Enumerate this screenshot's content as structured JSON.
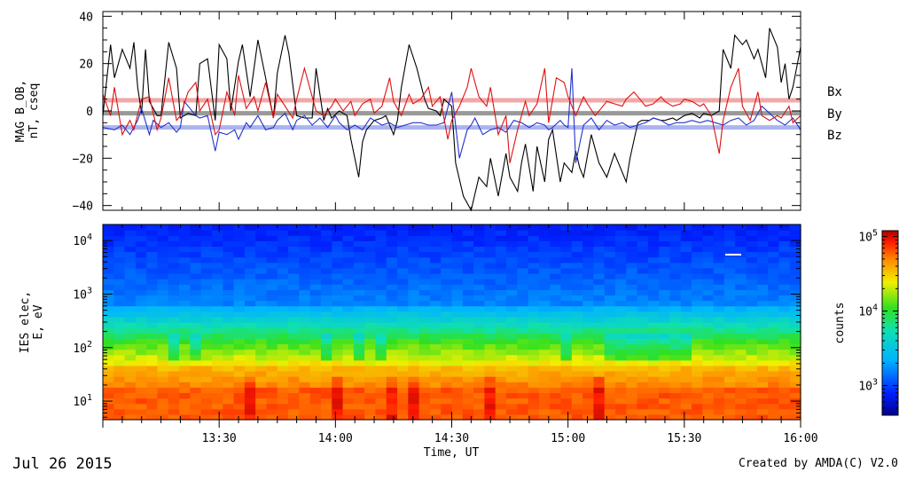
{
  "date_label": "Jul 26 2015",
  "credit": "Created by AMDA(C) V2.0",
  "chart_data": [
    {
      "type": "line",
      "title": "",
      "ylabel_lines": [
        "MAG B_OB,",
        "nT, cseq"
      ],
      "ylim": [
        -42,
        42
      ],
      "yticks": [
        -40,
        -20,
        0,
        20,
        40
      ],
      "ytick_labels": [
        "−40",
        "−20",
        "0",
        "20",
        "40"
      ],
      "xlim_minutes": [
        0,
        180
      ],
      "reference_lines": [
        {
          "series": "Bx",
          "value": -1,
          "color": "#999999"
        },
        {
          "series": "By",
          "value": -7,
          "color": "#aab4ee"
        },
        {
          "series": "Bz",
          "value": 4.5,
          "color": "#f0a8a8"
        }
      ],
      "series": [
        {
          "name": "Bx",
          "color": "#000000",
          "x": [
            0,
            2,
            3,
            5,
            7,
            8,
            9,
            10,
            11,
            12,
            14,
            15,
            17,
            19,
            20,
            22,
            24,
            25,
            27,
            29,
            30,
            32,
            33,
            35,
            36,
            38,
            40,
            42,
            44,
            45,
            47,
            48,
            50,
            52,
            54,
            55,
            57,
            58,
            59,
            61,
            62,
            63,
            64,
            66,
            67,
            68,
            70,
            72,
            73,
            75,
            76,
            77,
            79,
            81,
            83,
            84,
            86,
            87,
            88,
            90,
            91,
            93,
            95,
            97,
            99,
            100,
            102,
            104,
            105,
            107,
            108,
            109,
            111,
            112,
            114,
            115,
            116,
            118,
            119,
            121,
            122,
            123,
            124,
            126,
            128,
            130,
            132,
            133,
            135,
            136,
            138,
            139,
            141,
            142,
            144,
            145,
            147,
            148,
            149,
            150,
            152,
            154,
            155,
            157,
            159,
            160,
            162,
            163,
            165,
            166,
            168,
            169,
            171,
            172,
            174,
            175,
            176,
            177,
            178,
            180
          ],
          "values": [
            -2,
            28,
            14,
            26,
            18,
            29,
            10,
            -1,
            26,
            4,
            -2,
            -2,
            29,
            18,
            -3,
            -1,
            -2,
            20,
            22,
            -4,
            28,
            22,
            0,
            21,
            28,
            6,
            30,
            14,
            -3,
            16,
            32,
            24,
            -2,
            -3,
            -3,
            18,
            -4,
            1,
            -3,
            0,
            -1,
            -2,
            -12,
            -28,
            -13,
            -8,
            -4,
            -3,
            -2,
            -10,
            -4,
            10,
            28,
            18,
            5,
            1,
            0,
            -2,
            5,
            2,
            -22,
            -36,
            -42,
            -28,
            -32,
            -20,
            -36,
            -18,
            -28,
            -34,
            -22,
            -14,
            -34,
            -15,
            -30,
            -12,
            -8,
            -30,
            -22,
            -26,
            -17,
            -24,
            -28,
            -10,
            -22,
            -28,
            -18,
            -22,
            -30,
            -20,
            -5,
            -4,
            -4,
            -3,
            -4,
            -4,
            -3,
            -4,
            -3,
            -2,
            -1,
            -3,
            -1,
            -2,
            0,
            26,
            18,
            32,
            28,
            30,
            22,
            26,
            14,
            35,
            27,
            12,
            20,
            5,
            10,
            27
          ]
        },
        {
          "name": "By",
          "color": "#2233cc",
          "x": [
            0,
            3,
            5,
            7,
            9,
            10,
            12,
            13,
            15,
            17,
            19,
            20,
            21,
            22,
            24,
            25,
            27,
            29,
            30,
            32,
            34,
            35,
            37,
            38,
            40,
            42,
            44,
            45,
            47,
            49,
            50,
            52,
            54,
            56,
            58,
            60,
            61,
            63,
            65,
            67,
            69,
            70,
            72,
            74,
            76,
            78,
            80,
            82,
            84,
            86,
            88,
            90,
            92,
            94,
            95,
            96,
            98,
            100,
            102,
            104,
            106,
            108,
            110,
            112,
            114,
            115,
            116,
            118,
            119,
            120,
            121,
            122,
            124,
            126,
            128,
            130,
            132,
            134,
            136,
            138,
            140,
            142,
            144,
            146,
            148,
            150,
            152,
            154,
            156,
            158,
            160,
            162,
            164,
            166,
            168,
            170,
            172,
            174,
            176,
            178,
            180
          ],
          "values": [
            -7,
            -8,
            -6,
            -10,
            -4,
            1,
            -10,
            -4,
            -7,
            -5,
            -9,
            -7,
            4,
            2,
            -2,
            -3,
            -2,
            -17,
            -9,
            -10,
            -8,
            -12,
            -5,
            -7,
            -2,
            -8,
            -7,
            -4,
            -1,
            -8,
            -4,
            -2,
            -6,
            -3,
            -7,
            -2,
            -5,
            -8,
            -6,
            -8,
            -3,
            -4,
            -6,
            -5,
            -7,
            -6,
            -5,
            -5,
            -6,
            -6,
            -5,
            8,
            -20,
            -8,
            -6,
            -3,
            -10,
            -8,
            -7,
            -9,
            -4,
            -5,
            -7,
            -5,
            -6,
            -8,
            -7,
            -4,
            -6,
            -7,
            18,
            -22,
            -6,
            -3,
            -8,
            -4,
            -6,
            -5,
            -7,
            -6,
            -5,
            -3,
            -4,
            -6,
            -5,
            -5,
            -4,
            -5,
            -4,
            -5,
            -6,
            -4,
            -3,
            -6,
            -4,
            2,
            -1,
            -4,
            -6,
            -3,
            -8
          ]
        },
        {
          "name": "Bz",
          "color": "#dd1111",
          "x": [
            0,
            2,
            3,
            5,
            7,
            8,
            10,
            12,
            14,
            15,
            17,
            19,
            20,
            22,
            24,
            25,
            27,
            29,
            30,
            32,
            34,
            35,
            37,
            39,
            40,
            42,
            44,
            45,
            47,
            49,
            50,
            52,
            54,
            55,
            57,
            59,
            60,
            62,
            64,
            65,
            67,
            69,
            70,
            72,
            74,
            75,
            77,
            79,
            80,
            82,
            84,
            85,
            87,
            89,
            90,
            92,
            94,
            95,
            97,
            99,
            100,
            102,
            104,
            105,
            107,
            109,
            110,
            112,
            114,
            115,
            117,
            119,
            120,
            122,
            124,
            125,
            127,
            129,
            130,
            132,
            134,
            135,
            137,
            139,
            140,
            142,
            144,
            145,
            147,
            149,
            150,
            152,
            154,
            155,
            157,
            159,
            160,
            162,
            164,
            165,
            167,
            169,
            170,
            172,
            174,
            175,
            177,
            178,
            180
          ],
          "values": [
            7,
            -2,
            10,
            -10,
            -4,
            -8,
            5,
            6,
            -8,
            -3,
            14,
            -4,
            -2,
            8,
            12,
            0,
            5,
            -10,
            -8,
            8,
            -2,
            15,
            1,
            6,
            0,
            12,
            -3,
            7,
            2,
            -3,
            5,
            18,
            6,
            0,
            -2,
            2,
            5,
            0,
            4,
            -2,
            3,
            5,
            -1,
            2,
            14,
            4,
            -2,
            7,
            3,
            5,
            10,
            2,
            6,
            -12,
            -4,
            2,
            10,
            18,
            6,
            2,
            10,
            -10,
            -2,
            -22,
            -8,
            4,
            -2,
            3,
            18,
            -5,
            14,
            12,
            6,
            -2,
            6,
            3,
            -2,
            2,
            4,
            3,
            2,
            5,
            8,
            4,
            2,
            3,
            6,
            4,
            2,
            3,
            5,
            4,
            2,
            3,
            -2,
            -18,
            -4,
            10,
            18,
            2,
            -4,
            8,
            -2,
            -4,
            -2,
            -3,
            2,
            -5,
            -2
          ]
        }
      ]
    },
    {
      "type": "heatmap",
      "title": "",
      "ylabel_lines": [
        "IES elec,",
        "E, eV"
      ],
      "y_scale": "log",
      "ylim_eV": [
        4.5,
        20000
      ],
      "ytick_labels": [
        {
          "base": "10",
          "exp": "1",
          "value": 10
        },
        {
          "base": "10",
          "exp": "2",
          "value": 100
        },
        {
          "base": "10",
          "exp": "3",
          "value": 1000
        },
        {
          "base": "10",
          "exp": "4",
          "value": 10000
        }
      ],
      "description": "counts vs time and energy; highest counts near 10 eV, low counts above 1 keV",
      "colorbar": {
        "label": "counts",
        "scale": "log",
        "range": [
          400,
          120000
        ],
        "tick_labels": [
          {
            "base": "10",
            "exp": "3",
            "value": 1000
          },
          {
            "base": "10",
            "exp": "4",
            "value": 10000
          },
          {
            "base": "10",
            "exp": "5",
            "value": 100000
          }
        ]
      },
      "x_axis": {
        "label": "Time, UT",
        "tick_labels": [
          "13:30",
          "14:00",
          "14:30",
          "15:00",
          "15:30",
          "16:00"
        ],
        "tick_minutes": [
          30,
          60,
          90,
          120,
          150,
          180
        ]
      }
    }
  ],
  "legend": [
    {
      "label": "Bx",
      "color": "#000000"
    },
    {
      "label": "By",
      "color": "#2233cc"
    },
    {
      "label": "Bz",
      "color": "#dd1111"
    }
  ]
}
